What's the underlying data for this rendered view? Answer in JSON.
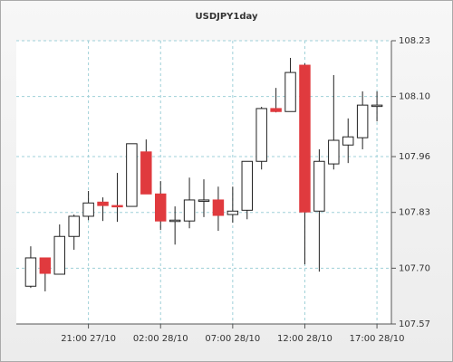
{
  "chart_data": {
    "type": "candlestick",
    "title": "USDJPY1day",
    "categories": [
      null,
      null,
      null,
      null,
      "21:00 27/10",
      null,
      null,
      null,
      null,
      "02:00 28/10",
      null,
      null,
      null,
      null,
      "07:00 28/10",
      null,
      null,
      null,
      null,
      "12:00 28/10",
      null,
      null,
      null,
      null,
      "17:00 28/10"
    ],
    "open": [
      107.658,
      107.724,
      107.686,
      107.774,
      107.821,
      107.854,
      107.846,
      107.844,
      107.971,
      107.873,
      107.812,
      107.81,
      107.857,
      107.859,
      107.825,
      107.835,
      107.949,
      108.072,
      108.065,
      108.173,
      107.833,
      107.943,
      107.987,
      108.004,
      108.079
    ],
    "high": [
      107.751,
      107.724,
      107.802,
      107.825,
      107.88,
      107.865,
      107.922,
      107.99,
      108.0,
      107.903,
      107.844,
      107.911,
      107.907,
      107.89,
      107.89,
      107.949,
      108.076,
      108.12,
      108.19,
      108.177,
      107.977,
      108.15,
      108.049,
      108.112,
      108.112
    ],
    "low": [
      107.654,
      107.646,
      107.686,
      107.743,
      107.812,
      107.81,
      107.808,
      107.844,
      107.873,
      107.789,
      107.755,
      107.793,
      107.819,
      107.787,
      107.806,
      107.814,
      107.93,
      108.063,
      108.065,
      107.709,
      107.692,
      107.93,
      107.945,
      107.977,
      108.042
    ],
    "close": [
      107.724,
      107.688,
      107.774,
      107.821,
      107.852,
      107.846,
      107.844,
      107.99,
      107.873,
      107.81,
      107.812,
      107.859,
      107.859,
      107.823,
      107.833,
      107.949,
      108.072,
      108.065,
      108.156,
      107.831,
      107.949,
      107.998,
      108.006,
      108.08,
      108.08
    ],
    "up_color": "#ffffff",
    "down_color": "#e03a3e",
    "edge_color": "#222222",
    "ylim": [
      107.57,
      108.23
    ],
    "yticks": [
      107.57,
      {
        "value": 107.7,
        "label": "107.70"
      },
      107.83,
      107.96,
      {
        "value": 108.1,
        "label": "108.10"
      },
      108.23
    ],
    "grid": true
  }
}
